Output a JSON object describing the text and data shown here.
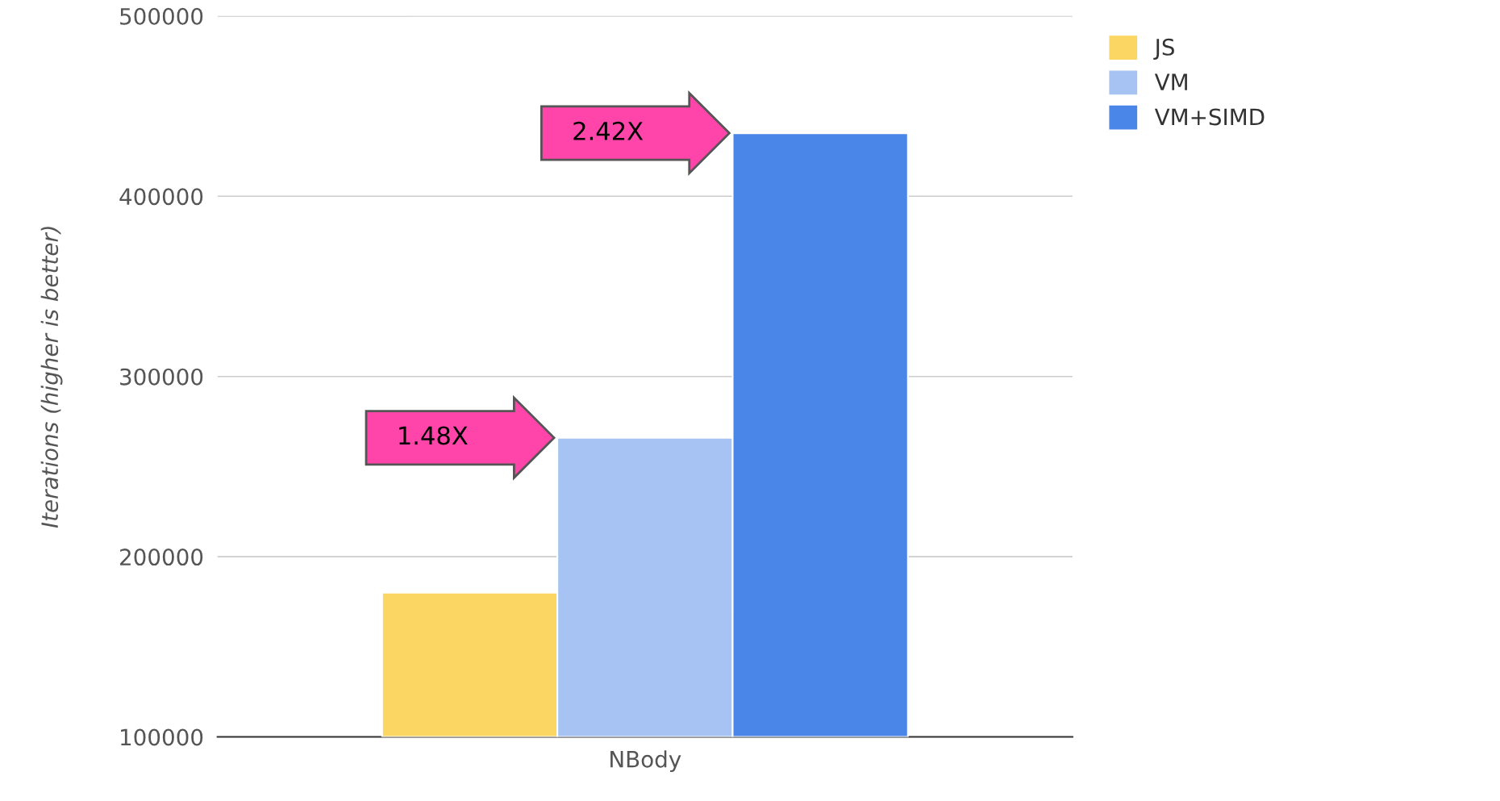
{
  "chart_data": {
    "type": "bar",
    "categories": [
      "NBody"
    ],
    "ylabel": "Iterations (higher is better)",
    "series": [
      {
        "name": "JS",
        "color": "#fcd663",
        "values": [
          180000
        ]
      },
      {
        "name": "VM",
        "color": "#a7c3f3",
        "values": [
          266000
        ]
      },
      {
        "name": "VM+SIMD",
        "color": "#4a86e8",
        "values": [
          435000
        ]
      }
    ],
    "ylim": [
      100000,
      500000
    ],
    "yticks": [
      100000,
      200000,
      300000,
      400000,
      500000
    ],
    "grid": "y",
    "legend": "top right",
    "annotations": [
      "1.48X",
      "2.42X"
    ]
  }
}
